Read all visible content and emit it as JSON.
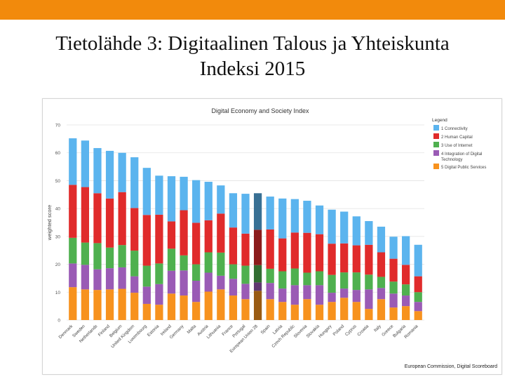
{
  "slide": {
    "title_line1": "Tietolähde 3: Digitaalinen Talous ja Yhteiskunta",
    "title_line2": "Indeksi 2015",
    "accent_color": "#F28A0C"
  },
  "source_note": "European Commission, Digital Scoreboard",
  "legend": {
    "title": "Legend",
    "items": [
      {
        "line1": "1 Connectivity",
        "line2": "",
        "color": "#5BB4EE"
      },
      {
        "line1": "2 Human Capital",
        "line2": "",
        "color": "#E02B2B"
      },
      {
        "line1": "3 Use of Internet",
        "line2": "",
        "color": "#4FB04F"
      },
      {
        "line1": "4 Integration of Digital",
        "line2": "Technology",
        "color": "#9A5BB5"
      },
      {
        "line1": "5 Digital Public Services",
        "line2": "",
        "color": "#F7921E"
      }
    ]
  },
  "chart_data": {
    "type": "bar",
    "stacked": true,
    "title": "Digital Economy and Society Index",
    "xlabel": "",
    "ylabel": "weighted score",
    "ylim": [
      0,
      70
    ],
    "yticks": [
      0,
      10,
      20,
      30,
      40,
      50,
      60,
      70
    ],
    "grid": true,
    "legend_position": "right",
    "categories": [
      "Denmark",
      "Sweden",
      "Netherlands",
      "Finland",
      "Belgium",
      "United Kingdom",
      "Luxembourg",
      "Estonia",
      "Ireland",
      "Germany",
      "Malta",
      "Austria",
      "Lithuania",
      "France",
      "Portugal",
      "European Union 28",
      "Spain",
      "Latvia",
      "Czech Republic",
      "Slovenia",
      "Slovakia",
      "Hungary",
      "Poland",
      "Cyprus",
      "Croatia",
      "Italy",
      "Greece",
      "Bulgaria",
      "Romania"
    ],
    "highlight_category": "European Union 28",
    "series": [
      {
        "name": "5 Digital Public Services",
        "color": "#F7921E",
        "values": [
          11.8,
          11.0,
          10.8,
          11.0,
          11.2,
          9.8,
          5.8,
          5.5,
          9.5,
          8.8,
          6.5,
          10.2,
          11.0,
          8.8,
          7.5,
          10.5,
          7.5,
          6.5,
          5.5,
          7.5,
          5.5,
          6.5,
          8.0,
          6.5,
          4.0,
          7.5,
          4.5,
          5.0,
          3.2
        ]
      },
      {
        "name": "4 Integration of Digital Technology",
        "color": "#9A5BB5",
        "values": [
          8.5,
          8.8,
          7.4,
          7.6,
          7.7,
          5.9,
          6.2,
          7.4,
          8.2,
          9.0,
          7.6,
          6.8,
          4.9,
          6.0,
          5.5,
          3.0,
          5.8,
          4.8,
          7.0,
          5.0,
          7.0,
          3.3,
          3.3,
          4.3,
          7.0,
          4.0,
          5.0,
          3.8,
          3.3
        ]
      },
      {
        "name": "3 Use of Internet",
        "color": "#4FB04F",
        "values": [
          9.2,
          8.0,
          9.4,
          7.4,
          8.0,
          9.2,
          7.5,
          7.4,
          7.9,
          5.4,
          5.9,
          7.3,
          8.3,
          5.2,
          6.5,
          6.2,
          5.1,
          6.2,
          6.0,
          4.5,
          5.0,
          6.4,
          5.8,
          6.3,
          5.3,
          4.0,
          4.3,
          4.0,
          3.5
        ]
      },
      {
        "name": "2 Human Capital",
        "color": "#E02B2B",
        "values": [
          19.0,
          19.9,
          17.9,
          17.6,
          19.0,
          15.3,
          18.2,
          17.5,
          9.8,
          16.2,
          14.9,
          11.5,
          14.0,
          13.2,
          11.5,
          12.7,
          14.1,
          11.8,
          12.9,
          14.3,
          13.3,
          11.2,
          10.4,
          9.7,
          10.7,
          8.8,
          8.2,
          7.0,
          5.7
        ]
      },
      {
        "name": "1 Connectivity",
        "color": "#5BB4EE",
        "values": [
          16.7,
          16.7,
          16.2,
          17.1,
          14.1,
          18.2,
          16.9,
          14.0,
          16.2,
          12.0,
          15.3,
          13.8,
          10.1,
          12.3,
          14.3,
          13.1,
          11.8,
          14.3,
          12.0,
          11.5,
          10.3,
          12.2,
          11.4,
          10.4,
          8.5,
          9.2,
          7.9,
          10.3,
          11.3
        ]
      }
    ]
  }
}
